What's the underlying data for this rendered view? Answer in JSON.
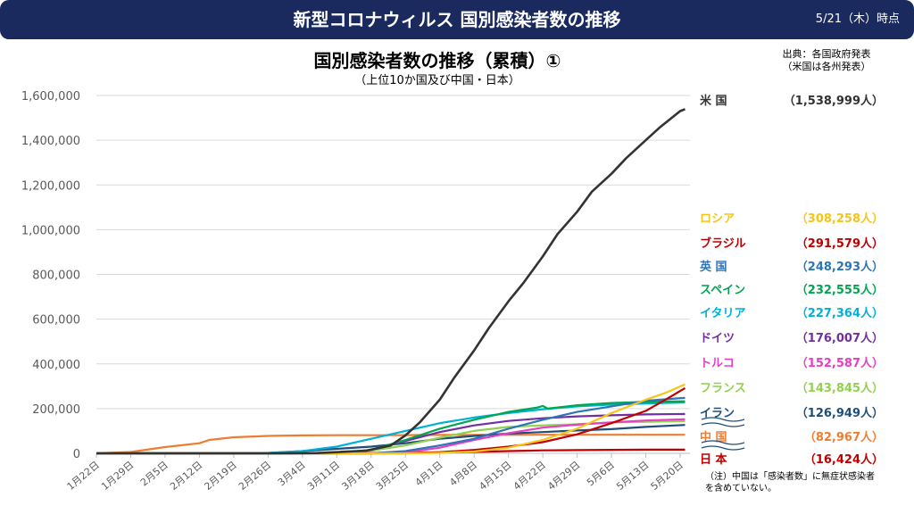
{
  "header": {
    "title": "新型コロナウィルス 国別感染者数の推移",
    "date": "5/21（木）時点"
  },
  "source": {
    "line1": "出典：各国政府発表",
    "line2": "（米国は各州発表）"
  },
  "note": {
    "line1": "（注）中国は「感染者数」に無症状感染者",
    "line2": "を含めていない。"
  },
  "chart_data": {
    "type": "line",
    "title": "国別感染者数の推移（累積）①",
    "subtitle": "（上位10か国及び中国・日本）",
    "xlabel": "",
    "ylabel": "",
    "ylim": [
      0,
      1600000
    ],
    "yticks": [
      0,
      200000,
      400000,
      600000,
      800000,
      1000000,
      1200000,
      1400000,
      1600000
    ],
    "ytick_labels": [
      "0",
      "200,000",
      "400,000",
      "600,000",
      "800,000",
      "1,000,000",
      "1,200,000",
      "1,400,000",
      "1,600,000"
    ],
    "xlim": [
      0,
      121
    ],
    "xticks": [
      0,
      7,
      14,
      21,
      28,
      35,
      42,
      49,
      56,
      63,
      70,
      77,
      84,
      91,
      98,
      105,
      112,
      119
    ],
    "xtick_labels": [
      "1月22日",
      "1月29日",
      "2月5日",
      "2月12日",
      "2月19日",
      "2月26日",
      "3月4日",
      "3月11日",
      "3月18日",
      "3月25日",
      "4月1日",
      "4月8日",
      "4月15日",
      "4月22日",
      "4月29日",
      "5月6日",
      "5月13日",
      "5月20日"
    ],
    "grid": true,
    "legend_position": "right",
    "series": [
      {
        "name": "米 国",
        "label": "（1,538,999人）",
        "color": "#333333",
        "points": [
          [
            0,
            0
          ],
          [
            35,
            100
          ],
          [
            45,
            1000
          ],
          [
            55,
            12000
          ],
          [
            60,
            35000
          ],
          [
            63,
            80000
          ],
          [
            66,
            140000
          ],
          [
            70,
            240000
          ],
          [
            73,
            340000
          ],
          [
            77,
            460000
          ],
          [
            80,
            560000
          ],
          [
            84,
            680000
          ],
          [
            87,
            760000
          ],
          [
            91,
            880000
          ],
          [
            94,
            980000
          ],
          [
            98,
            1080000
          ],
          [
            101,
            1170000
          ],
          [
            105,
            1250000
          ],
          [
            108,
            1320000
          ],
          [
            112,
            1400000
          ],
          [
            115,
            1460000
          ],
          [
            119,
            1530000
          ],
          [
            120,
            1538999
          ]
        ]
      },
      {
        "name": "ロシア",
        "label": "（308,258人）",
        "color": "#f5c518",
        "points": [
          [
            0,
            0
          ],
          [
            63,
            0
          ],
          [
            70,
            2000
          ],
          [
            77,
            8000
          ],
          [
            84,
            25000
          ],
          [
            91,
            60000
          ],
          [
            98,
            110000
          ],
          [
            105,
            180000
          ],
          [
            112,
            240000
          ],
          [
            116,
            270000
          ],
          [
            120,
            308258
          ]
        ]
      },
      {
        "name": "ブラジル",
        "label": "（291,579人）",
        "color": "#c00000",
        "points": [
          [
            0,
            0
          ],
          [
            63,
            0
          ],
          [
            70,
            5000
          ],
          [
            77,
            15000
          ],
          [
            84,
            30000
          ],
          [
            91,
            50000
          ],
          [
            98,
            85000
          ],
          [
            105,
            135000
          ],
          [
            112,
            190000
          ],
          [
            116,
            240000
          ],
          [
            120,
            291579
          ]
        ]
      },
      {
        "name": "英 国",
        "label": "（248,293人）",
        "color": "#2e75b6",
        "points": [
          [
            0,
            0
          ],
          [
            56,
            0
          ],
          [
            63,
            10000
          ],
          [
            70,
            35000
          ],
          [
            77,
            65000
          ],
          [
            84,
            110000
          ],
          [
            91,
            150000
          ],
          [
            98,
            185000
          ],
          [
            105,
            210000
          ],
          [
            112,
            235000
          ],
          [
            120,
            248293
          ]
        ]
      },
      {
        "name": "スペイン",
        "label": "（232,555人）",
        "color": "#00a650",
        "points": [
          [
            0,
            0
          ],
          [
            42,
            0
          ],
          [
            49,
            2000
          ],
          [
            56,
            15000
          ],
          [
            63,
            60000
          ],
          [
            70,
            110000
          ],
          [
            77,
            150000
          ],
          [
            84,
            185000
          ],
          [
            90,
            205000
          ],
          [
            91,
            212000
          ],
          [
            92,
            200000
          ],
          [
            98,
            215000
          ],
          [
            105,
            225000
          ],
          [
            112,
            230000
          ],
          [
            120,
            232555
          ]
        ]
      },
      {
        "name": "イタリア",
        "label": "（227,364人）",
        "color": "#00b0d8",
        "points": [
          [
            0,
            0
          ],
          [
            28,
            0
          ],
          [
            35,
            2000
          ],
          [
            42,
            10000
          ],
          [
            49,
            30000
          ],
          [
            56,
            65000
          ],
          [
            63,
            100000
          ],
          [
            70,
            135000
          ],
          [
            77,
            160000
          ],
          [
            84,
            180000
          ],
          [
            91,
            197000
          ],
          [
            98,
            210000
          ],
          [
            105,
            218000
          ],
          [
            112,
            223000
          ],
          [
            120,
            227364
          ]
        ]
      },
      {
        "name": "ドイツ",
        "label": "（176,007人）",
        "color": "#7030a0",
        "points": [
          [
            0,
            0
          ],
          [
            42,
            0
          ],
          [
            49,
            1500
          ],
          [
            56,
            15000
          ],
          [
            63,
            55000
          ],
          [
            70,
            95000
          ],
          [
            77,
            125000
          ],
          [
            84,
            145000
          ],
          [
            91,
            157000
          ],
          [
            98,
            165000
          ],
          [
            105,
            170000
          ],
          [
            112,
            174000
          ],
          [
            120,
            176007
          ]
        ]
      },
      {
        "name": "トルコ",
        "label": "（152,587人）",
        "color": "#e83ec5",
        "points": [
          [
            0,
            0
          ],
          [
            56,
            0
          ],
          [
            63,
            3000
          ],
          [
            70,
            25000
          ],
          [
            77,
            60000
          ],
          [
            84,
            90000
          ],
          [
            91,
            115000
          ],
          [
            98,
            128000
          ],
          [
            105,
            138000
          ],
          [
            112,
            147000
          ],
          [
            120,
            152587
          ]
        ]
      },
      {
        "name": "フランス",
        "label": "（143,845人）",
        "color": "#92d050",
        "points": [
          [
            0,
            0
          ],
          [
            42,
            0
          ],
          [
            49,
            2000
          ],
          [
            56,
            12000
          ],
          [
            63,
            35000
          ],
          [
            70,
            70000
          ],
          [
            77,
            100000
          ],
          [
            84,
            118000
          ],
          [
            91,
            125000
          ],
          [
            98,
            130000
          ],
          [
            105,
            138000
          ],
          [
            112,
            141000
          ],
          [
            120,
            143845
          ]
        ]
      },
      {
        "name": "イラン",
        "label": "（126,949人）",
        "color": "#1f4e79",
        "points": [
          [
            0,
            0
          ],
          [
            28,
            0
          ],
          [
            35,
            1000
          ],
          [
            42,
            10000
          ],
          [
            49,
            20000
          ],
          [
            56,
            30000
          ],
          [
            63,
            45000
          ],
          [
            70,
            65000
          ],
          [
            77,
            78000
          ],
          [
            84,
            88000
          ],
          [
            91,
            95000
          ],
          [
            98,
            102000
          ],
          [
            105,
            108000
          ],
          [
            112,
            118000
          ],
          [
            120,
            126949
          ]
        ]
      },
      {
        "name": "中 国",
        "label": "（82,967人）",
        "color": "#ed7d31",
        "points": [
          [
            0,
            500
          ],
          [
            7,
            6000
          ],
          [
            14,
            28000
          ],
          [
            21,
            45000
          ],
          [
            23,
            60000
          ],
          [
            28,
            72000
          ],
          [
            35,
            78000
          ],
          [
            42,
            80000
          ],
          [
            49,
            80800
          ],
          [
            56,
            81000
          ],
          [
            63,
            81500
          ],
          [
            70,
            82000
          ],
          [
            77,
            82300
          ],
          [
            84,
            82700
          ],
          [
            91,
            82800
          ],
          [
            98,
            82900
          ],
          [
            105,
            82900
          ],
          [
            112,
            82950
          ],
          [
            120,
            82967
          ]
        ]
      },
      {
        "name": "日 本",
        "label": "（16,424人）",
        "color": "#c00000",
        "points": [
          [
            0,
            0
          ],
          [
            35,
            300
          ],
          [
            49,
            800
          ],
          [
            63,
            2500
          ],
          [
            70,
            4000
          ],
          [
            77,
            6500
          ],
          [
            84,
            10000
          ],
          [
            91,
            13000
          ],
          [
            98,
            14500
          ],
          [
            105,
            15700
          ],
          [
            112,
            16200
          ],
          [
            120,
            16424
          ]
        ]
      }
    ]
  }
}
